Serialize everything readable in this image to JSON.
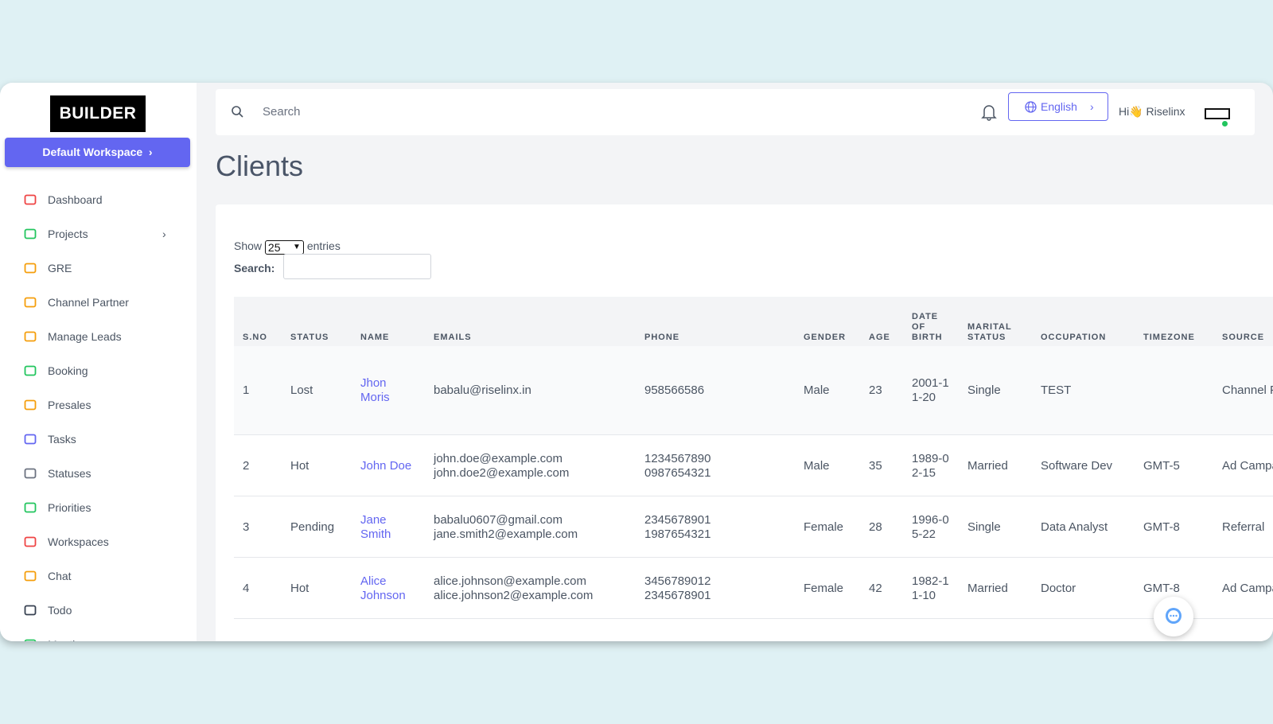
{
  "sidebar": {
    "logo": "BUILDER",
    "workspace": "Default Workspace",
    "menu": [
      {
        "label": "Dashboard",
        "icon_color": "#ef4444"
      },
      {
        "label": "Projects",
        "icon_color": "#22c55e"
      },
      {
        "label": "GRE",
        "icon_color": "#f59e0b"
      },
      {
        "label": "Channel Partner",
        "icon_color": "#f59e0b"
      },
      {
        "label": "Manage Leads",
        "icon_color": "#f59e0b"
      },
      {
        "label": "Booking",
        "icon_color": "#22c55e"
      },
      {
        "label": "Presales",
        "icon_color": "#f59e0b"
      },
      {
        "label": "Tasks",
        "icon_color": "#6366f1"
      },
      {
        "label": "Statuses",
        "icon_color": "#6b7280"
      },
      {
        "label": "Priorities",
        "icon_color": "#22c55e"
      },
      {
        "label": "Workspaces",
        "icon_color": "#ef4444"
      },
      {
        "label": "Chat",
        "icon_color": "#f59e0b"
      },
      {
        "label": "Todo",
        "icon_color": "#374151"
      },
      {
        "label": "Meetings",
        "icon_color": "#22c55e"
      }
    ]
  },
  "header": {
    "search_placeholder": "Search",
    "language": "English",
    "greeting": "Hi👋 Riselinx"
  },
  "page_title": "Clients",
  "table_controls": {
    "show": "Show",
    "page_size": "25",
    "entries": "entries",
    "search": "Search:"
  },
  "table": {
    "columns": [
      "S.NO",
      "STATUS",
      "NAME",
      "EMAILS",
      "PHONE",
      "GENDER",
      "AGE",
      "DATE OF BIRTH",
      "MARITAL STATUS",
      "OCCUPATION",
      "TIMEZONE",
      "SOURCE"
    ],
    "rows": [
      [
        "1",
        "Lost",
        "Jhon Moris",
        [
          "babalu@riselinx.in"
        ],
        [
          "958566586"
        ],
        "Male",
        "23",
        "2001-11-20",
        "Single",
        "TEST",
        null,
        "Channel Partner"
      ],
      [
        "2",
        "Hot",
        "John Doe",
        [
          "john.doe@example.com",
          "john.doe2@example.com"
        ],
        [
          "1234567890",
          "0987654321"
        ],
        "Male",
        "35",
        "1989-02-15",
        "Married",
        "Software Dev",
        "GMT-5",
        "Ad Campaign"
      ],
      [
        "3",
        "Pending",
        "Jane Smith",
        [
          "babalu0607@gmail.com",
          "jane.smith2@example.com"
        ],
        [
          "2345678901",
          "1987654321"
        ],
        "Female",
        "28",
        "1996-05-22",
        "Single",
        "Data Analyst",
        "GMT-8",
        "Referral"
      ],
      [
        "4",
        "Hot",
        "Alice Johnson",
        [
          "alice.johnson@example.com",
          "alice.johnson2@example.com"
        ],
        [
          "3456789012",
          "2345678901"
        ],
        "Female",
        "42",
        "1982-11-10",
        "Married",
        "Doctor",
        "GMT-8",
        "Ad Campaign"
      ]
    ]
  }
}
